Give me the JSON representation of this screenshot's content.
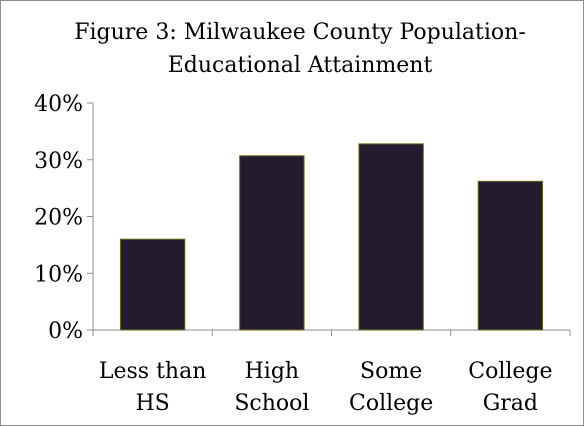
{
  "chart_data": {
    "type": "bar",
    "title_lines": [
      "Figure 3: Milwaukee County Population-",
      "Educational Attainment"
    ],
    "categories": [
      [
        "Less than",
        "HS"
      ],
      [
        "High",
        "School"
      ],
      [
        "Some",
        "College"
      ],
      [
        "College",
        "Grad"
      ]
    ],
    "values": [
      16,
      30.7,
      32.8,
      26.2
    ],
    "ylim": [
      0,
      40
    ],
    "yticks": [
      0,
      10,
      20,
      30,
      40
    ],
    "ytick_labels": [
      "0%",
      "10%",
      "20%",
      "30%",
      "40%"
    ],
    "xlabel": "",
    "ylabel": "",
    "grid": false,
    "legend": "none",
    "colors": {
      "bar_fill": "#231b2e",
      "bar_stroke": "#6b6a1c",
      "axis": "#8c8c8c"
    }
  }
}
